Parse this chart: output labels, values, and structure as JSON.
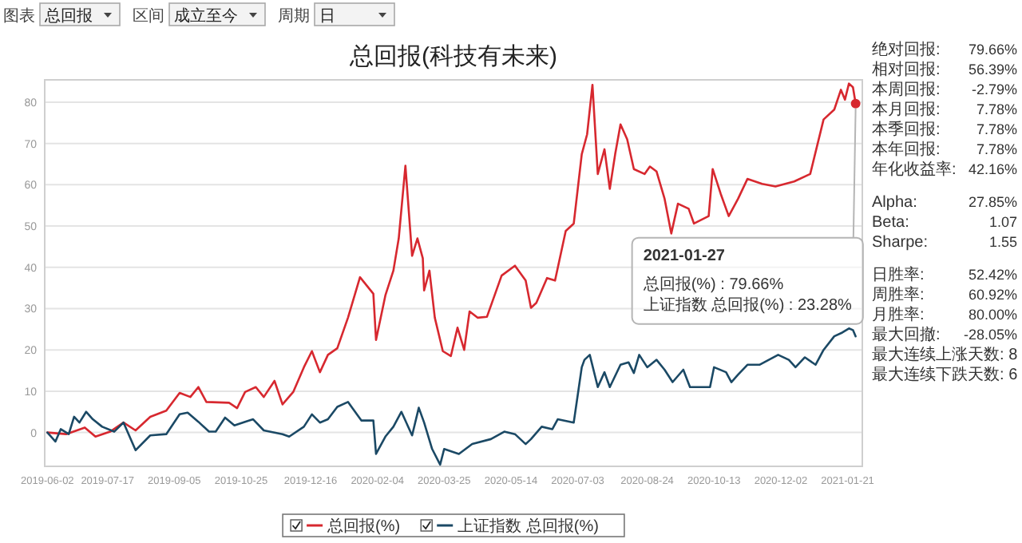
{
  "chart_data": [
    {
      "type": "other",
      "annotations": [
        "图表",
        "总回报",
        "区间",
        "成立至今",
        "周期",
        "日"
      ]
    },
    {
      "type": "line",
      "title": "总回报(科技有未来)",
      "xlim": [
        "2019-05-31",
        "2021-02-01"
      ],
      "ylim": [
        -8.2,
        85.4
      ],
      "xticks": [
        "2019-06-02",
        "2019-07-17",
        "2019-09-05",
        "2019-10-25",
        "2019-12-16",
        "2020-02-04",
        "2020-03-25",
        "2020-05-14",
        "2020-07-03",
        "2020-08-24",
        "2020-10-13",
        "2020-12-02",
        "2021-01-21"
      ],
      "yticks": [
        0,
        10,
        20,
        30,
        40,
        50,
        60,
        70,
        80
      ],
      "grid": "y",
      "legend": "bottom",
      "series": [
        {
          "name": "总回报(%)",
          "color": "#d7282f",
          "x": [
            "2019-06-02",
            "2019-06-16",
            "2019-06-30",
            "2019-07-08",
            "2019-07-19",
            "2019-07-29",
            "2019-08-07",
            "2019-08-18",
            "2019-08-30",
            "2019-09-09",
            "2019-09-17",
            "2019-09-23",
            "2019-09-29",
            "2019-10-16",
            "2019-10-22",
            "2019-10-28",
            "2019-11-05",
            "2019-11-11",
            "2019-11-19",
            "2019-11-25",
            "2019-12-03",
            "2019-12-11",
            "2019-12-17",
            "2019-12-23",
            "2019-12-29",
            "2020-01-05",
            "2020-01-13",
            "2020-01-22",
            "2020-02-01",
            "2020-02-03",
            "2020-02-10",
            "2020-02-16",
            "2020-02-20",
            "2020-02-25",
            "2020-03-01",
            "2020-03-05",
            "2020-03-09",
            "2020-03-10",
            "2020-03-14",
            "2020-03-18",
            "2020-03-24",
            "2020-03-30",
            "2020-04-04",
            "2020-04-09",
            "2020-04-13",
            "2020-04-19",
            "2020-04-26",
            "2020-05-07",
            "2020-05-17",
            "2020-05-25",
            "2020-05-29",
            "2020-06-02",
            "2020-06-10",
            "2020-06-16",
            "2020-06-24",
            "2020-06-30",
            "2020-07-06",
            "2020-07-10",
            "2020-07-14",
            "2020-07-18",
            "2020-07-23",
            "2020-07-27",
            "2020-07-31",
            "2020-08-04",
            "2020-08-09",
            "2020-08-14",
            "2020-08-22",
            "2020-08-26",
            "2020-08-31",
            "2020-09-06",
            "2020-09-11",
            "2020-09-16",
            "2020-09-24",
            "2020-09-28",
            "2020-10-09",
            "2020-10-12",
            "2020-10-18",
            "2020-10-24",
            "2020-10-31",
            "2020-11-07",
            "2020-11-18",
            "2020-11-28",
            "2020-12-12",
            "2020-12-24",
            "2021-01-03",
            "2021-01-11",
            "2021-01-16",
            "2021-01-19",
            "2021-01-22",
            "2021-01-25",
            "2021-01-27"
          ],
          "values": [
            0,
            -0.4,
            1.2,
            -1,
            0.2,
            2.4,
            0.5,
            3.8,
            5.3,
            9.6,
            8.6,
            11,
            7.4,
            7.2,
            5.9,
            9.8,
            11,
            8.6,
            12.5,
            6.8,
            9.8,
            15.8,
            19.7,
            14.6,
            18.8,
            20.4,
            27.8,
            37.6,
            33.6,
            22.4,
            33.2,
            39.2,
            47,
            64.6,
            42.8,
            47,
            42.2,
            34.4,
            39.2,
            27.8,
            19.7,
            18.5,
            25.4,
            20,
            29.3,
            27.8,
            28,
            38,
            40.4,
            36.8,
            30.2,
            31.4,
            37.4,
            36.8,
            48.8,
            50.6,
            67.4,
            72.2,
            84.2,
            62.6,
            68.6,
            59,
            67.4,
            74.6,
            71,
            63.8,
            62.6,
            64.4,
            63.2,
            56.6,
            48.2,
            55.4,
            54.2,
            50.6,
            52.4,
            63.8,
            57.8,
            52.4,
            56.6,
            61.4,
            60.2,
            59.6,
            60.8,
            62.6,
            75.8,
            78.2,
            83,
            80.6,
            84.5,
            83.6,
            79.66
          ]
        },
        {
          "name": "上证指数 总回报(%)",
          "color": "#1b4965",
          "x": [
            "2019-06-02",
            "2019-06-08",
            "2019-06-12",
            "2019-06-18",
            "2019-06-22",
            "2019-06-26",
            "2019-07-01",
            "2019-07-06",
            "2019-07-13",
            "2019-07-22",
            "2019-07-29",
            "2019-08-07",
            "2019-08-18",
            "2019-08-30",
            "2019-09-09",
            "2019-09-15",
            "2019-09-23",
            "2019-10-01",
            "2019-10-06",
            "2019-10-13",
            "2019-10-20",
            "2019-10-28",
            "2019-11-03",
            "2019-11-11",
            "2019-11-25",
            "2019-11-30",
            "2019-12-11",
            "2019-12-17",
            "2019-12-23",
            "2019-12-29",
            "2020-01-05",
            "2020-01-13",
            "2020-01-23",
            "2020-02-01",
            "2020-02-03",
            "2020-02-10",
            "2020-02-16",
            "2020-02-22",
            "2020-03-01",
            "2020-03-06",
            "2020-03-10",
            "2020-03-16",
            "2020-03-22",
            "2020-03-25",
            "2020-04-05",
            "2020-04-15",
            "2020-04-29",
            "2020-05-09",
            "2020-05-17",
            "2020-05-25",
            "2020-05-29",
            "2020-06-06",
            "2020-06-14",
            "2020-06-18",
            "2020-06-30",
            "2020-07-06",
            "2020-07-08",
            "2020-07-12",
            "2020-07-18",
            "2020-07-23",
            "2020-07-27",
            "2020-08-04",
            "2020-08-10",
            "2020-08-14",
            "2020-08-18",
            "2020-08-24",
            "2020-08-31",
            "2020-09-06",
            "2020-09-12",
            "2020-09-20",
            "2020-09-25",
            "2020-10-10",
            "2020-10-13",
            "2020-10-22",
            "2020-10-26",
            "2020-10-31",
            "2020-11-07",
            "2020-11-16",
            "2020-11-23",
            "2020-11-30",
            "2020-12-08",
            "2020-12-13",
            "2020-12-20",
            "2020-12-28",
            "2021-01-03",
            "2021-01-11",
            "2021-01-17",
            "2021-01-22",
            "2021-01-25",
            "2021-01-27"
          ],
          "values": [
            0,
            -2.2,
            0.8,
            -0.4,
            3.8,
            2.4,
            5,
            3.2,
            1.4,
            0.2,
            2.4,
            -4.3,
            -0.7,
            -0.4,
            4.4,
            4.8,
            2.6,
            0.2,
            0.2,
            3.6,
            1.7,
            2.6,
            3.2,
            0.5,
            -0.4,
            -1,
            1.4,
            4.4,
            2.4,
            3.2,
            6.2,
            7.4,
            2.9,
            2.9,
            -5.2,
            -1,
            1.4,
            5,
            -0.7,
            6,
            2.4,
            -4,
            -7.8,
            -4,
            -5.2,
            -2.8,
            -1.6,
            0.2,
            -0.4,
            -2.8,
            -1.6,
            1.4,
            0.8,
            3.2,
            2.4,
            15.8,
            17.6,
            18.8,
            11,
            14.6,
            11,
            16.4,
            17,
            14.4,
            18.8,
            15.8,
            17.6,
            15.2,
            12.2,
            15.2,
            11,
            11,
            15.8,
            14.6,
            12.2,
            14,
            16.4,
            16.4,
            17.6,
            18.8,
            17.6,
            15.8,
            18.2,
            16.4,
            20,
            23.3,
            24.2,
            25.2,
            24.8,
            23.28
          ]
        }
      ],
      "annotations": [
        {
          "text": "2021-01-27\n\n总回报(%) : 79.66%\n上证指数 总回报(%) : 23.28%",
          "x": "2021-01-27",
          "y": 79.66
        }
      ]
    },
    {
      "type": "other",
      "annotations": [
        "绝对回报: 79.66%\n相对回报: 56.39%\n本周回报: -2.79%\n本月回报: 7.78%\n本季回报: 7.78%\n本年回报: 7.78%\n年化收益率: 42.16%",
        "Alpha: 27.85%\nBeta: 1.07\nSharpe: 1.55",
        "日胜率: 52.42%\n周胜率: 60.92%\n月胜率: 80.00%\n最大回撤: -28.05%\n最大连续上涨天数: 8\n最大连续下跌天数: 6"
      ]
    }
  ]
}
